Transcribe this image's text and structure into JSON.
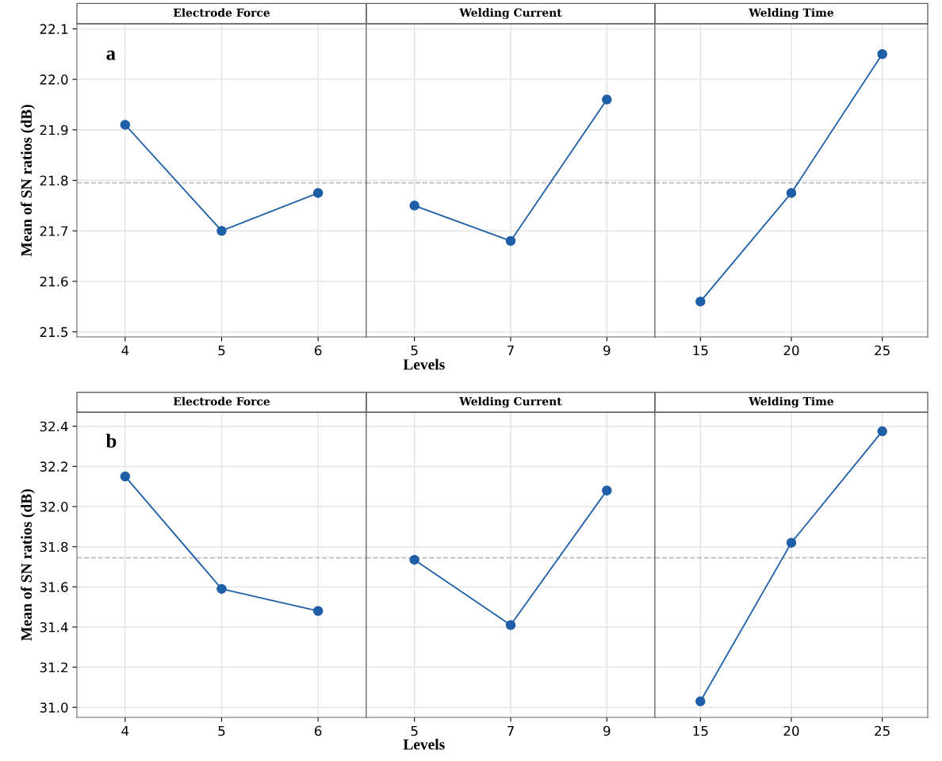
{
  "chart_data": [
    {
      "type": "line",
      "title": "Electrode Force",
      "ylabel": "Mean of SN ratios (dB)",
      "annotations": [
        "a"
      ],
      "categories": [
        "4",
        "5",
        "6"
      ],
      "values": [
        21.91,
        21.7,
        21.775
      ],
      "color": "#1f5fa8",
      "ylim": [
        21.49,
        22.11
      ],
      "yticks": [
        21.5,
        21.6,
        21.7,
        21.8,
        21.9,
        {
          "value": 22,
          "label": "22.0"
        },
        22.1
      ],
      "ref_lines": [
        {
          "axis": "y",
          "value": 21.795,
          "color": "#bbbbbb",
          "line_style": "dashed"
        }
      ],
      "grid": true,
      "marker": "circle"
    },
    {
      "type": "line",
      "title": "Welding Current",
      "xlabel": "Levels",
      "categories": [
        "5",
        "7",
        "9"
      ],
      "values": [
        21.75,
        21.68,
        21.96
      ],
      "color": "#1f5fa8",
      "ylim": [
        21.49,
        22.11
      ],
      "ref_lines": [
        {
          "axis": "y",
          "value": 21.795,
          "color": "#bbbbbb",
          "line_style": "dashed"
        }
      ],
      "grid": true,
      "marker": "circle",
      "tick_labels": "x"
    },
    {
      "type": "line",
      "title": "Welding Time",
      "categories": [
        "15",
        "20",
        "25"
      ],
      "values": [
        21.56,
        21.775,
        22.05
      ],
      "color": "#1f5fa8",
      "ylim": [
        21.49,
        22.11
      ],
      "ref_lines": [
        {
          "axis": "y",
          "value": 21.795,
          "color": "#bbbbbb",
          "line_style": "dashed"
        }
      ],
      "grid": true,
      "marker": "circle",
      "tick_labels": "x"
    },
    {
      "type": "line",
      "title": "Electrode Force",
      "ylabel": "Mean of SN ratios (dB)",
      "annotations": [
        "b"
      ],
      "categories": [
        "4",
        "5",
        "6"
      ],
      "values": [
        32.15,
        31.59,
        31.48
      ],
      "color": "#1f5fa8",
      "ylim": [
        30.95,
        32.47
      ],
      "yticks": [
        {
          "value": 31,
          "label": "31.0"
        },
        31.2,
        31.4,
        31.6,
        31.8,
        {
          "value": 32,
          "label": "32.0"
        },
        32.2,
        32.4
      ],
      "ref_lines": [
        {
          "axis": "y",
          "value": 31.745,
          "color": "#bbbbbb",
          "line_style": "dashed"
        }
      ],
      "grid": true,
      "marker": "circle"
    },
    {
      "type": "line",
      "title": "Welding Current",
      "xlabel": "Levels",
      "categories": [
        "5",
        "7",
        "9"
      ],
      "values": [
        31.735,
        31.41,
        32.08
      ],
      "color": "#1f5fa8",
      "ylim": [
        30.95,
        32.47
      ],
      "ref_lines": [
        {
          "axis": "y",
          "value": 31.745,
          "color": "#bbbbbb",
          "line_style": "dashed"
        }
      ],
      "grid": true,
      "marker": "circle",
      "tick_labels": "x"
    },
    {
      "type": "line",
      "title": "Welding Time",
      "categories": [
        "15",
        "20",
        "25"
      ],
      "values": [
        31.03,
        31.82,
        32.375
      ],
      "color": "#1f5fa8",
      "ylim": [
        30.95,
        32.47
      ],
      "ref_lines": [
        {
          "axis": "y",
          "value": 31.745,
          "color": "#bbbbbb",
          "line_style": "dashed"
        }
      ],
      "grid": true,
      "marker": "circle",
      "tick_labels": "x"
    }
  ]
}
